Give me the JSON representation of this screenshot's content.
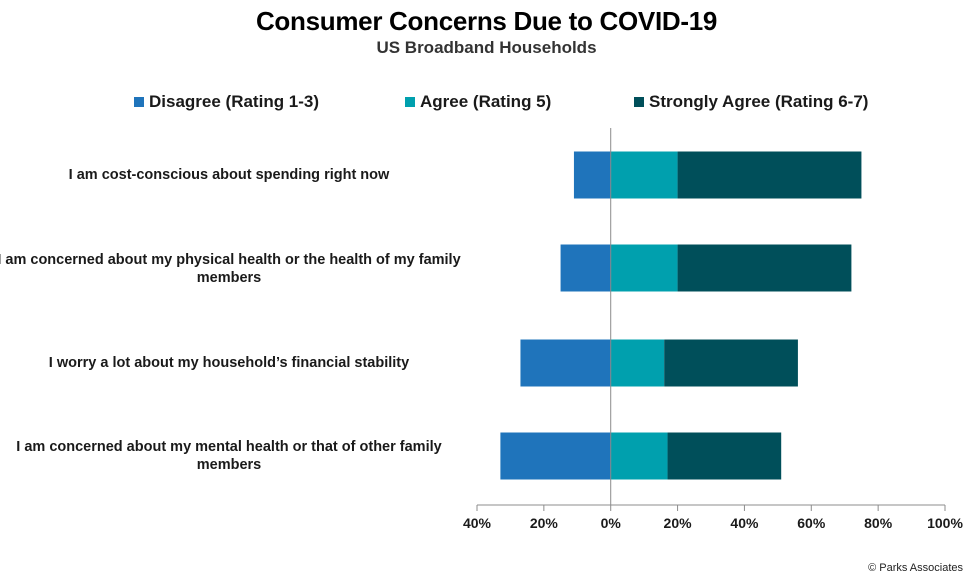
{
  "chart_data": {
    "type": "bar",
    "orientation": "horizontal-diverging",
    "title": "Consumer Concerns Due to COVID-19",
    "subtitle": "US Broadband Households",
    "categories": [
      "I am cost-conscious about spending right now",
      "I am concerned about my physical health or the health of my family members",
      "I worry a lot about my household’s financial stability",
      "I am concerned about my mental health or that of other family members"
    ],
    "series": [
      {
        "name": "Disagree (Rating 1-3)",
        "color": "#1f74bb",
        "values": [
          -11,
          -15,
          -27,
          -33
        ]
      },
      {
        "name": "Agree (Rating 5)",
        "color": "#00a0ae",
        "values": [
          20,
          20,
          16,
          17
        ]
      },
      {
        "name": "Strongly Agree (Rating 6-7)",
        "color": "#004f5a",
        "values": [
          55,
          52,
          40,
          34
        ]
      }
    ],
    "xlim": [
      -40,
      100
    ],
    "xticks": [
      -40,
      -20,
      0,
      20,
      40,
      60,
      80,
      100
    ],
    "xtick_labels": [
      "40%",
      "20%",
      "0%",
      "20%",
      "40%",
      "60%",
      "80%",
      "100%"
    ],
    "legend_position": "top",
    "grid": false
  },
  "footer": "© Parks Associates"
}
